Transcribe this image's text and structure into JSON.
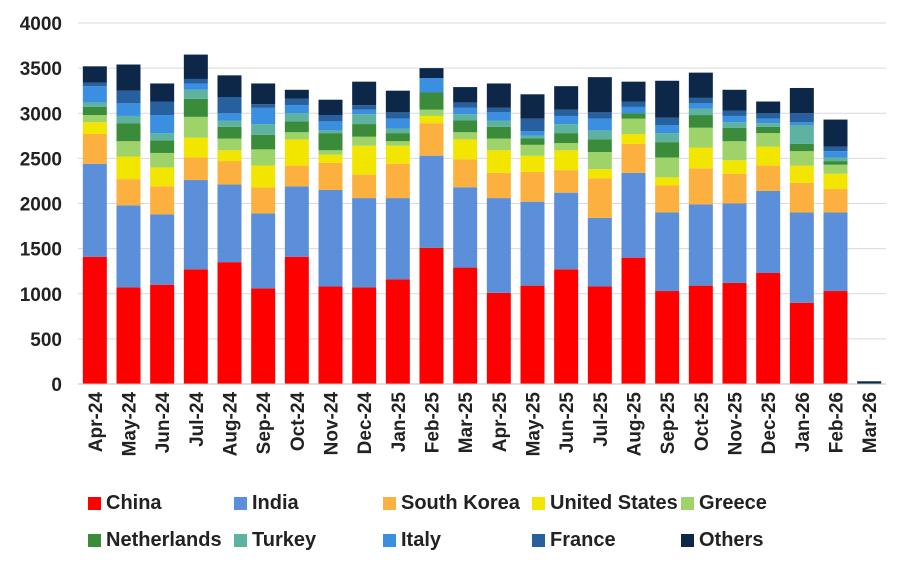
{
  "chart_data": {
    "type": "bar",
    "stacked": true,
    "title": "",
    "xlabel": "",
    "ylabel": "",
    "ylim": [
      0,
      4000
    ],
    "yticks": [
      0,
      500,
      1000,
      1500,
      2000,
      2500,
      3000,
      3500,
      4000
    ],
    "grid": true,
    "legend_position": "bottom",
    "categories": [
      "Apr-24",
      "May-24",
      "Jun-24",
      "Jul-24",
      "Aug-24",
      "Sep-24",
      "Oct-24",
      "Nov-24",
      "Dec-24",
      "Jan-25",
      "Feb-25",
      "Mar-25",
      "Apr-25",
      "May-25",
      "Jun-25",
      "Jul-25",
      "Aug-25",
      "Sep-25",
      "Oct-25",
      "Nov-25",
      "Dec-25",
      "Jan-26",
      "Feb-26",
      "Mar-26"
    ],
    "series": [
      {
        "name": "China",
        "color": "#ff0000",
        "values": [
          1410,
          1070,
          1100,
          1270,
          1350,
          1060,
          1410,
          1080,
          1070,
          1160,
          1510,
          1290,
          1010,
          1090,
          1270,
          1080,
          1400,
          1030,
          1090,
          1120,
          1230,
          900,
          1030,
          0
        ]
      },
      {
        "name": "India",
        "color": "#5b8fd9",
        "values": [
          1030,
          910,
          780,
          990,
          860,
          830,
          780,
          1070,
          990,
          900,
          1020,
          890,
          1050,
          930,
          850,
          760,
          940,
          870,
          900,
          880,
          910,
          1000,
          870,
          0
        ]
      },
      {
        "name": "South Korea",
        "color": "#fbb040",
        "values": [
          330,
          290,
          310,
          250,
          260,
          290,
          230,
          300,
          260,
          380,
          360,
          310,
          280,
          330,
          250,
          440,
          320,
          300,
          400,
          330,
          280,
          330,
          260,
          0
        ]
      },
      {
        "name": "United States",
        "color": "#f2e600",
        "values": [
          130,
          250,
          210,
          220,
          120,
          240,
          290,
          90,
          320,
          200,
          80,
          220,
          250,
          180,
          220,
          100,
          110,
          90,
          230,
          150,
          210,
          190,
          170,
          0
        ]
      },
      {
        "name": "Greece",
        "color": "#9ed36a",
        "values": [
          80,
          170,
          160,
          230,
          130,
          180,
          80,
          50,
          100,
          50,
          70,
          80,
          130,
          120,
          80,
          190,
          170,
          220,
          220,
          210,
          150,
          160,
          100,
          0
        ]
      },
      {
        "name": "Netherlands",
        "color": "#3a8c3a",
        "values": [
          90,
          200,
          140,
          200,
          130,
          160,
          120,
          190,
          140,
          90,
          190,
          130,
          130,
          70,
          110,
          140,
          60,
          170,
          140,
          150,
          70,
          80,
          40,
          0
        ]
      },
      {
        "name": "Turkey",
        "color": "#5db3a0",
        "values": [
          50,
          80,
          80,
          100,
          70,
          120,
          90,
          30,
          110,
          50,
          0,
          70,
          70,
          30,
          100,
          100,
          0,
          100,
          70,
          60,
          40,
          210,
          40,
          0
        ]
      },
      {
        "name": "Italy",
        "color": "#3a8fe0",
        "values": [
          180,
          140,
          200,
          70,
          80,
          180,
          90,
          100,
          50,
          110,
          160,
          70,
          90,
          50,
          90,
          130,
          70,
          90,
          60,
          70,
          50,
          30,
          70,
          0
        ]
      },
      {
        "name": "France",
        "color": "#27609e",
        "values": [
          40,
          140,
          150,
          50,
          180,
          40,
          70,
          70,
          50,
          70,
          0,
          60,
          50,
          140,
          70,
          70,
          60,
          80,
          60,
          60,
          60,
          100,
          50,
          0
        ]
      },
      {
        "name": "Others",
        "color": "#0c2748",
        "values": [
          180,
          290,
          200,
          270,
          240,
          230,
          100,
          170,
          260,
          240,
          110,
          170,
          270,
          270,
          260,
          390,
          220,
          410,
          280,
          230,
          130,
          280,
          300,
          30
        ]
      }
    ]
  }
}
